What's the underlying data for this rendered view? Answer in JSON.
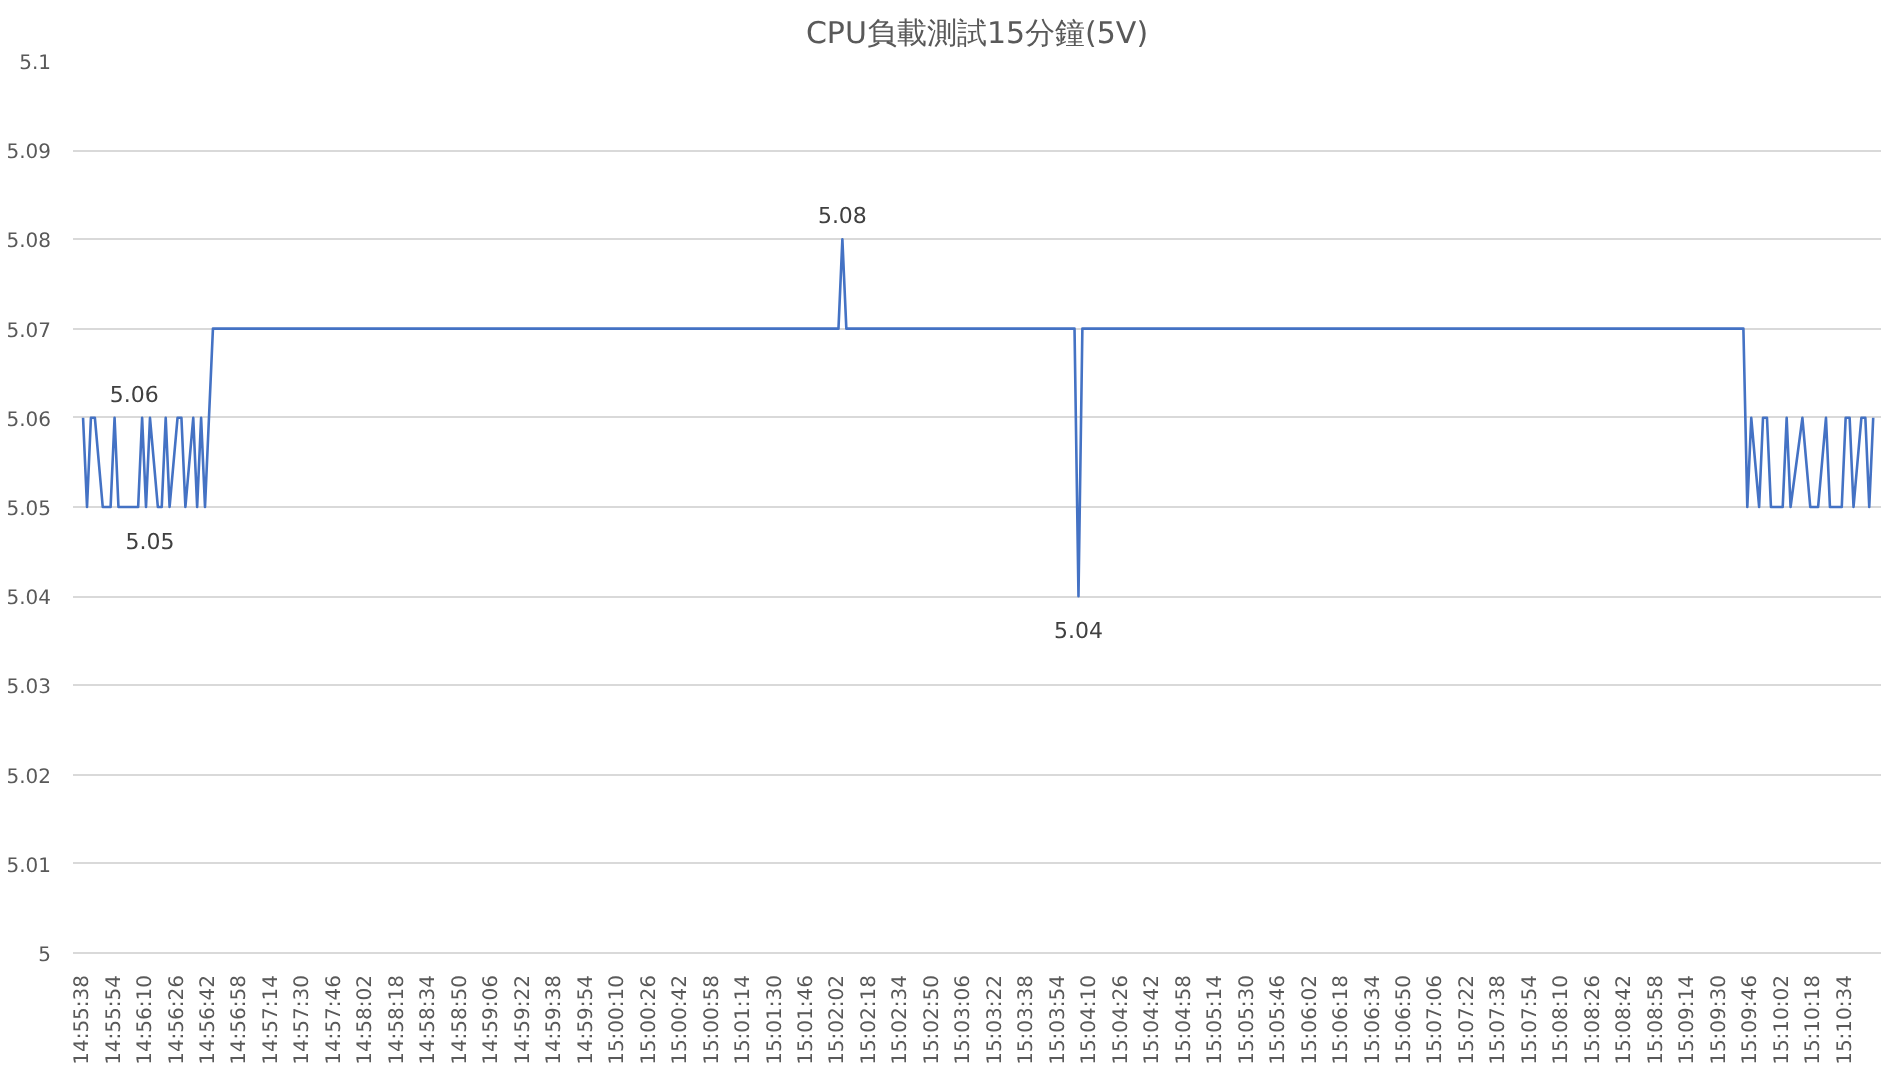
{
  "chart_data": {
    "type": "line",
    "title": "CPU負載測試15分鐘(5V)",
    "x": [
      14.92722,
      14.92778,
      14.92833,
      14.92889,
      14.93,
      14.93111,
      14.93167,
      14.93222,
      14.935,
      14.93556,
      14.93611,
      14.93667,
      14.93778,
      14.93833,
      14.93889,
      14.93944,
      14.94056,
      14.94111,
      14.94167,
      14.94278,
      14.94333,
      14.94389,
      14.94444,
      14.945,
      14.94556,
      15.03389,
      15.03444,
      15.035,
      15.06722,
      15.06778,
      15.06833,
      15.16167,
      15.16222,
      15.16278,
      15.16389,
      15.16444,
      15.165,
      15.16556,
      15.16722,
      15.16778,
      15.16833,
      15.17,
      15.17111,
      15.17222,
      15.17333,
      15.17389,
      15.17556,
      15.17611,
      15.17667,
      15.17722,
      15.17833,
      15.17889,
      15.17944,
      15.18
    ],
    "series": [
      {
        "color": "#4472c4",
        "values": [
          5.06,
          5.05,
          5.06,
          5.06,
          5.05,
          5.05,
          5.06,
          5.05,
          5.05,
          5.06,
          5.05,
          5.06,
          5.05,
          5.05,
          5.06,
          5.05,
          5.06,
          5.06,
          5.05,
          5.06,
          5.05,
          5.06,
          5.05,
          5.06,
          5.07,
          5.07,
          5.08,
          5.07,
          5.07,
          5.04,
          5.07,
          5.07,
          5.05,
          5.06,
          5.05,
          5.06,
          5.06,
          5.05,
          5.05,
          5.06,
          5.05,
          5.06,
          5.05,
          5.05,
          5.06,
          5.05,
          5.05,
          5.06,
          5.06,
          5.05,
          5.06,
          5.06,
          5.05,
          5.06
        ]
      }
    ],
    "xlim": [
      14.9258,
      15.1811
    ],
    "xticks": [
      {
        "value": 14.92722,
        "label": "14:55:38"
      },
      {
        "value": 14.93167,
        "label": "14:55:54"
      },
      {
        "value": 14.93611,
        "label": "14:56:10"
      },
      {
        "value": 14.94056,
        "label": "14:56:26"
      },
      {
        "value": 14.945,
        "label": "14:56:42"
      },
      {
        "value": 14.94944,
        "label": "14:56:58"
      },
      {
        "value": 14.95389,
        "label": "14:57:14"
      },
      {
        "value": 14.95833,
        "label": "14:57:30"
      },
      {
        "value": 14.96278,
        "label": "14:57:46"
      },
      {
        "value": 14.96722,
        "label": "14:58:02"
      },
      {
        "value": 14.97167,
        "label": "14:58:18"
      },
      {
        "value": 14.97611,
        "label": "14:58:34"
      },
      {
        "value": 14.98056,
        "label": "14:58:50"
      },
      {
        "value": 14.985,
        "label": "14:59:06"
      },
      {
        "value": 14.98944,
        "label": "14:59:22"
      },
      {
        "value": 14.99389,
        "label": "14:59:38"
      },
      {
        "value": 14.99833,
        "label": "14:59:54"
      },
      {
        "value": 15.00278,
        "label": "15:00:10"
      },
      {
        "value": 15.00722,
        "label": "15:00:26"
      },
      {
        "value": 15.01167,
        "label": "15:00:42"
      },
      {
        "value": 15.01611,
        "label": "15:00:58"
      },
      {
        "value": 15.02056,
        "label": "15:01:14"
      },
      {
        "value": 15.025,
        "label": "15:01:30"
      },
      {
        "value": 15.02944,
        "label": "15:01:46"
      },
      {
        "value": 15.03389,
        "label": "15:02:02"
      },
      {
        "value": 15.03833,
        "label": "15:02:18"
      },
      {
        "value": 15.04278,
        "label": "15:02:34"
      },
      {
        "value": 15.04722,
        "label": "15:02:50"
      },
      {
        "value": 15.05167,
        "label": "15:03:06"
      },
      {
        "value": 15.05611,
        "label": "15:03:22"
      },
      {
        "value": 15.06056,
        "label": "15:03:38"
      },
      {
        "value": 15.065,
        "label": "15:03:54"
      },
      {
        "value": 15.06944,
        "label": "15:04:10"
      },
      {
        "value": 15.07389,
        "label": "15:04:26"
      },
      {
        "value": 15.07833,
        "label": "15:04:42"
      },
      {
        "value": 15.08278,
        "label": "15:04:58"
      },
      {
        "value": 15.08722,
        "label": "15:05:14"
      },
      {
        "value": 15.09167,
        "label": "15:05:30"
      },
      {
        "value": 15.09611,
        "label": "15:05:46"
      },
      {
        "value": 15.10056,
        "label": "15:06:02"
      },
      {
        "value": 15.105,
        "label": "15:06:18"
      },
      {
        "value": 15.10944,
        "label": "15:06:34"
      },
      {
        "value": 15.11389,
        "label": "15:06:50"
      },
      {
        "value": 15.11833,
        "label": "15:07:06"
      },
      {
        "value": 15.12278,
        "label": "15:07:22"
      },
      {
        "value": 15.12722,
        "label": "15:07:38"
      },
      {
        "value": 15.13167,
        "label": "15:07:54"
      },
      {
        "value": 15.13611,
        "label": "15:08:10"
      },
      {
        "value": 15.14056,
        "label": "15:08:26"
      },
      {
        "value": 15.145,
        "label": "15:08:42"
      },
      {
        "value": 15.14944,
        "label": "15:08:58"
      },
      {
        "value": 15.15389,
        "label": "15:09:14"
      },
      {
        "value": 15.15833,
        "label": "15:09:30"
      },
      {
        "value": 15.16278,
        "label": "15:09:46"
      },
      {
        "value": 15.16722,
        "label": "15:10:02"
      },
      {
        "value": 15.17167,
        "label": "15:10:18"
      },
      {
        "value": 15.17611,
        "label": "15:10:34"
      }
    ],
    "ylim": [
      5,
      5.1
    ],
    "yticks": [
      5,
      5.01,
      5.02,
      5.03,
      5.04,
      5.05,
      5.06,
      5.07,
      5.08,
      5.09,
      5.1
    ],
    "grid": "y",
    "line_style": "solid",
    "marker": "none",
    "annotations": [
      {
        "text": "5.06",
        "x": 14.93444,
        "y": 5.06
      },
      {
        "text": "5.05",
        "x": 14.93667,
        "y": 5.05
      },
      {
        "text": "5.08",
        "x": 15.03444,
        "y": 5.08
      },
      {
        "text": "5.04",
        "x": 15.06778,
        "y": 5.04
      }
    ]
  }
}
